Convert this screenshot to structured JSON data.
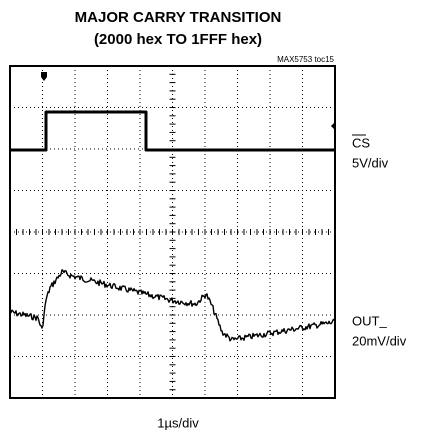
{
  "title": "MAJOR CARRY TRANSITION",
  "subtitle": "(2000 hex TO 1FFF hex)",
  "figure_id": "MAX5753 toc15",
  "channels": [
    {
      "name": "CS",
      "scale": "5V/div"
    },
    {
      "name": "OUT_",
      "scale": "20mV/div"
    }
  ],
  "time_scale": "1µs/div"
}
